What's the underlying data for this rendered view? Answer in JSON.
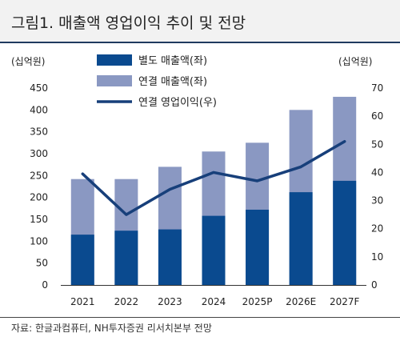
{
  "figure": {
    "title": "그림1. 매출액 영업이익 추이 및 전망",
    "source": "자료: 한글과컴퓨터, NH투자증권 리서치본부 전망"
  },
  "colors": {
    "separate_sales": "#0a4a8f",
    "consolidated_sales": "#8a98c2",
    "operating_income": "#173f7a",
    "title_background": "#f2f2f2"
  },
  "chart_data": {
    "type": "bar",
    "categories": [
      "2021",
      "2022",
      "2023",
      "2024",
      "2025P",
      "2026E",
      "2027F"
    ],
    "left_unit": "(십억원)",
    "right_unit": "(십억원)",
    "ylim_left": [
      0,
      450
    ],
    "yticks_left": [
      0,
      50,
      100,
      150,
      200,
      250,
      300,
      350,
      400,
      450
    ],
    "ylim_right": [
      0,
      70
    ],
    "yticks_right": [
      0,
      10,
      20,
      30,
      40,
      50,
      60,
      70
    ],
    "grid": false,
    "legend_position": "top-left",
    "series": [
      {
        "name": "별도 매출액(좌)",
        "kind": "bar",
        "axis": "left",
        "values": [
          115,
          124,
          127,
          158,
          172,
          212,
          238
        ]
      },
      {
        "name": "연결 매출액(좌)",
        "kind": "bar",
        "axis": "left",
        "values": [
          242,
          242,
          270,
          305,
          325,
          400,
          430
        ]
      },
      {
        "name": "연결 영업이익(우)",
        "kind": "line",
        "axis": "right",
        "values": [
          39.5,
          25,
          34,
          40,
          37,
          42,
          51
        ]
      }
    ]
  }
}
